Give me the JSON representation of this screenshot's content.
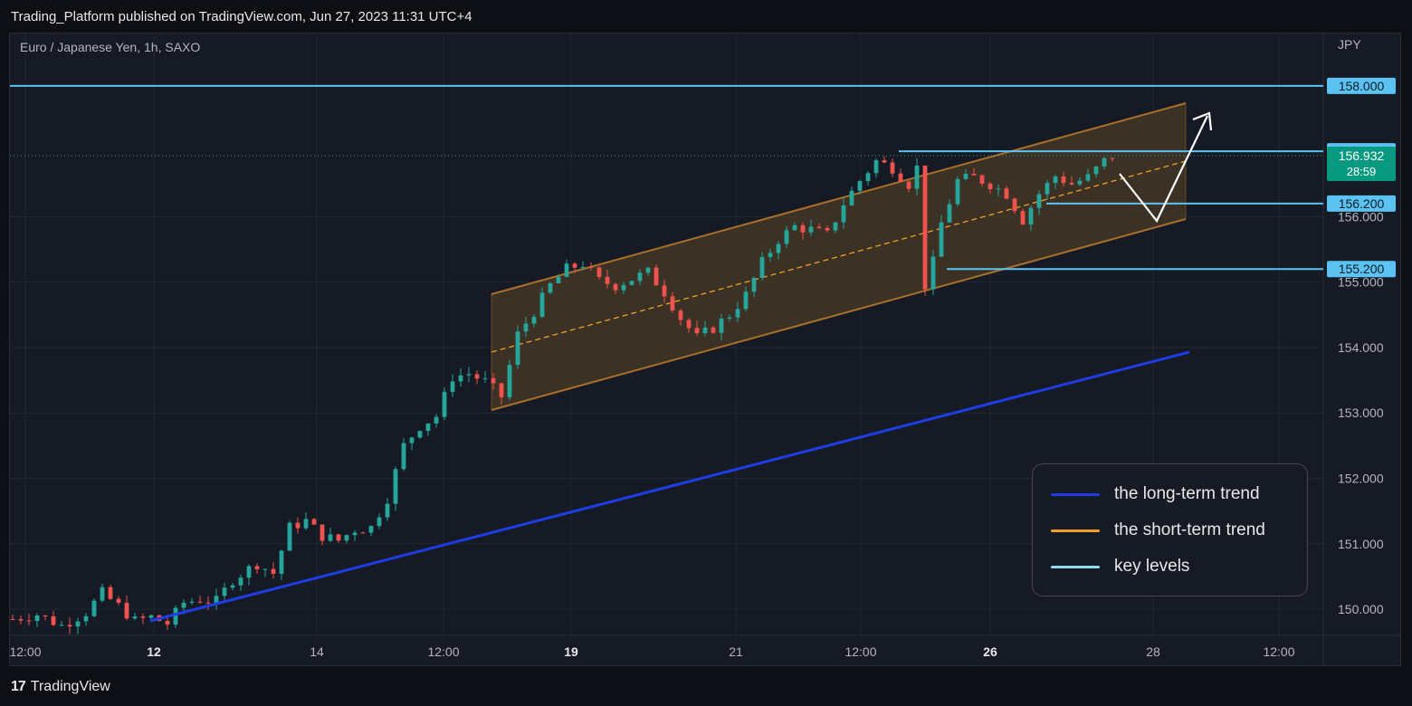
{
  "header": {
    "published": "Trading_Platform published on TradingView.com, Jun 27, 2023 11:31 UTC+4"
  },
  "footer": {
    "brand": "TradingView"
  },
  "colors": {
    "long_trend": "#1e3de6",
    "short_trend": "#f0a028",
    "key_levels": "#5cc2f2",
    "up": "#26a69a",
    "down": "#ef5350",
    "channel_edge": "#a8702a",
    "channel_fill": "#4a3a26"
  },
  "legend": [
    {
      "label": "the long-term trend",
      "color": "#1e3de6"
    },
    {
      "label": "the short-term trend",
      "color": "#f0a028"
    },
    {
      "label": "key levels",
      "color": "#8fdcf0"
    }
  ],
  "chart_data": {
    "type": "candlestick",
    "title": "Euro / Japanese Yen, 1h, SAXO",
    "currency": "JPY",
    "ylim": [
      149.6,
      158.8
    ],
    "y_ticks": [
      150.0,
      151.0,
      152.0,
      153.0,
      154.0,
      155.0,
      156.0
    ],
    "y_tick_labels": [
      "150.000",
      "151.000",
      "152.000",
      "153.000",
      "154.000",
      "155.000",
      "156.000"
    ],
    "x_ticks": [
      {
        "label": "12:00",
        "bold": false
      },
      {
        "label": "12",
        "bold": true
      },
      {
        "label": "14",
        "bold": false
      },
      {
        "label": "12:00",
        "bold": false
      },
      {
        "label": "19",
        "bold": true
      },
      {
        "label": "21",
        "bold": false
      },
      {
        "label": "12:00",
        "bold": false
      },
      {
        "label": "26",
        "bold": true
      },
      {
        "label": "28",
        "bold": false
      },
      {
        "label": "12:00",
        "bold": false
      }
    ],
    "price_path": [
      [
        0,
        149.85
      ],
      [
        3,
        149.92
      ],
      [
        6,
        149.75
      ],
      [
        9,
        149.95
      ],
      [
        11,
        150.25
      ],
      [
        13,
        150.05
      ],
      [
        15,
        149.82
      ],
      [
        17,
        149.88
      ],
      [
        19,
        149.78
      ],
      [
        21,
        150.1
      ],
      [
        23,
        150.15
      ],
      [
        25,
        150.12
      ],
      [
        27,
        150.45
      ],
      [
        30,
        150.7
      ],
      [
        32,
        150.55
      ],
      [
        34,
        151.25
      ],
      [
        36,
        151.35
      ],
      [
        38,
        151.12
      ],
      [
        40,
        151.05
      ],
      [
        42,
        151.22
      ],
      [
        44,
        151.25
      ],
      [
        46,
        151.7
      ],
      [
        48,
        152.5
      ],
      [
        50,
        152.8
      ],
      [
        52,
        152.95
      ],
      [
        54,
        153.55
      ],
      [
        56,
        153.6
      ],
      [
        58,
        153.48
      ],
      [
        60,
        153.25
      ],
      [
        62,
        154.2
      ],
      [
        64,
        154.55
      ],
      [
        66,
        154.95
      ],
      [
        68,
        155.2
      ],
      [
        70,
        155.28
      ],
      [
        72,
        155.02
      ],
      [
        74,
        154.95
      ],
      [
        76,
        155.05
      ],
      [
        78,
        155.15
      ],
      [
        80,
        154.85
      ],
      [
        82,
        154.45
      ],
      [
        84,
        154.15
      ],
      [
        86,
        154.3
      ],
      [
        88,
        154.5
      ],
      [
        90,
        154.8
      ],
      [
        92,
        155.3
      ],
      [
        94,
        155.65
      ],
      [
        96,
        155.85
      ],
      [
        98,
        155.8
      ],
      [
        100,
        155.72
      ],
      [
        102,
        156.2
      ],
      [
        104,
        156.55
      ],
      [
        106,
        156.85
      ],
      [
        108,
        156.75
      ],
      [
        110,
        156.5
      ],
      [
        111,
        156.75
      ],
      [
        112,
        154.95
      ],
      [
        113,
        155.3
      ],
      [
        114,
        155.9
      ],
      [
        116,
        156.55
      ],
      [
        118,
        156.6
      ],
      [
        120,
        156.5
      ],
      [
        122,
        156.35
      ],
      [
        124,
        155.95
      ],
      [
        126,
        156.35
      ],
      [
        128,
        156.62
      ],
      [
        130,
        156.5
      ],
      [
        132,
        156.6
      ],
      [
        134,
        156.85
      ],
      [
        135,
        156.93
      ]
    ],
    "candle_count": 136,
    "last_price": "156.932",
    "countdown": "28:59",
    "key_levels": [
      {
        "value": 158.0,
        "label": "158.000"
      },
      {
        "value": 157.0,
        "label": "157.000"
      },
      {
        "value": 156.2,
        "label": "156.200"
      },
      {
        "value": 155.2,
        "label": "155.200"
      }
    ]
  }
}
